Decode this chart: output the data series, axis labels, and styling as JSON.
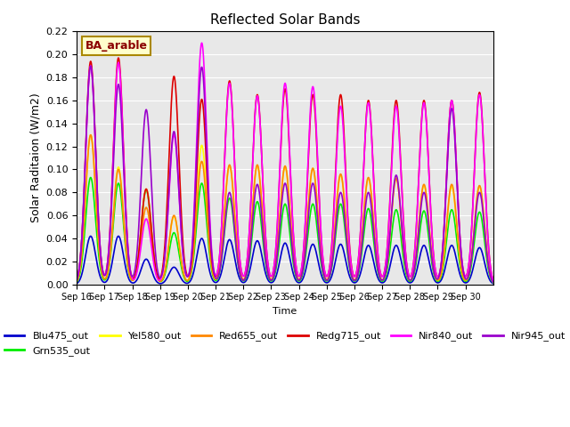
{
  "title": "Reflected Solar Bands",
  "xlabel": "Time",
  "ylabel": "Solar Raditaion (W/m2)",
  "annotation": "BA_arable",
  "ylim": [
    0,
    0.22
  ],
  "yticks": [
    0.0,
    0.02,
    0.04,
    0.06,
    0.08,
    0.1,
    0.12,
    0.14,
    0.16,
    0.18,
    0.2,
    0.22
  ],
  "background_color": "#e8e8e8",
  "series": [
    {
      "name": "Blu475_out",
      "color": "#0000cc",
      "lw": 1.2
    },
    {
      "name": "Grn535_out",
      "color": "#00ee00",
      "lw": 1.2
    },
    {
      "name": "Yel580_out",
      "color": "#ffff00",
      "lw": 1.2
    },
    {
      "name": "Red655_out",
      "color": "#ff8800",
      "lw": 1.2
    },
    {
      "name": "Redg715_out",
      "color": "#dd0000",
      "lw": 1.2
    },
    {
      "name": "Nir840_out",
      "color": "#ff00ff",
      "lw": 1.2
    },
    {
      "name": "Nir945_out",
      "color": "#9900cc",
      "lw": 1.2
    }
  ],
  "xtick_labels": [
    "Sep 16",
    "Sep 17",
    "Sep 18",
    "Sep 19",
    "Sep 20",
    "Sep 21",
    "Sep 22",
    "Sep 23",
    "Sep 24",
    "Sep 25",
    "Sep 26",
    "Sep 27",
    "Sep 28",
    "Sep 29",
    "Sep 30"
  ],
  "day_peaks": {
    "Blu475_out": [
      0.042,
      0.042,
      0.022,
      0.015,
      0.04,
      0.039,
      0.038,
      0.036,
      0.035,
      0.035,
      0.034,
      0.034,
      0.034,
      0.034,
      0.032
    ],
    "Grn535_out": [
      0.093,
      0.088,
      0.082,
      0.045,
      0.088,
      0.075,
      0.072,
      0.07,
      0.07,
      0.07,
      0.066,
      0.065,
      0.064,
      0.065,
      0.063
    ],
    "Yel580_out": [
      0.13,
      0.102,
      0.083,
      0.059,
      0.121,
      0.103,
      0.103,
      0.102,
      0.101,
      0.095,
      0.092,
      0.093,
      0.086,
      0.085,
      0.085
    ],
    "Red655_out": [
      0.13,
      0.1,
      0.067,
      0.06,
      0.107,
      0.104,
      0.104,
      0.103,
      0.101,
      0.096,
      0.093,
      0.092,
      0.087,
      0.087,
      0.086
    ],
    "Redg715_out": [
      0.194,
      0.197,
      0.083,
      0.181,
      0.161,
      0.177,
      0.165,
      0.17,
      0.165,
      0.165,
      0.16,
      0.16,
      0.16,
      0.16,
      0.167
    ],
    "Nir840_out": [
      0.19,
      0.193,
      0.057,
      0.13,
      0.21,
      0.175,
      0.164,
      0.175,
      0.172,
      0.155,
      0.158,
      0.155,
      0.158,
      0.16,
      0.165
    ],
    "Nir945_out": [
      0.19,
      0.174,
      0.152,
      0.133,
      0.189,
      0.08,
      0.087,
      0.088,
      0.088,
      0.08,
      0.08,
      0.095,
      0.08,
      0.153,
      0.08
    ]
  }
}
